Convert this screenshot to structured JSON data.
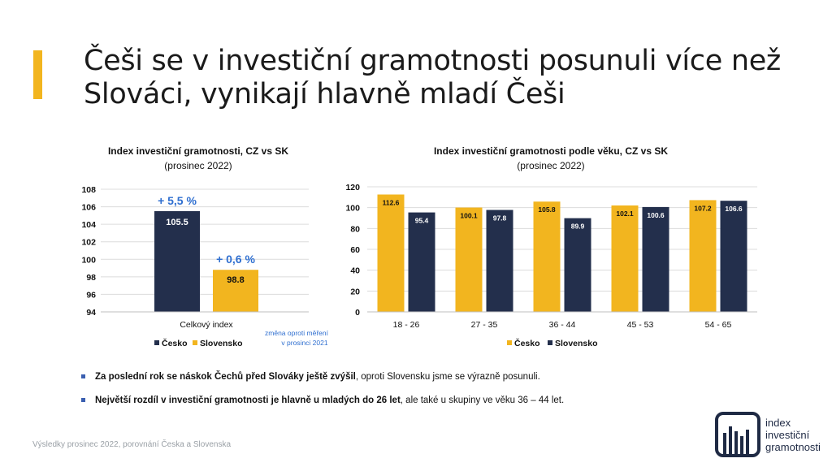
{
  "title": {
    "line1": "Češi se v investiční gramotnosti posunuli více než",
    "line2": "Slováci, vynikají hlavně mladí Češi"
  },
  "colors": {
    "accent": "#f2b51f",
    "cesko": "#f2b51f",
    "slovensko": "#232f4c",
    "highlight": "#2f6fd0"
  },
  "chart_data": [
    {
      "type": "bar",
      "title": "Index investiční gramotnosti, CZ vs SK",
      "subtitle": "(prosinec 2022)",
      "categories": [
        "Celkový index"
      ],
      "series": [
        {
          "name": "Česko",
          "values": [
            105.5
          ],
          "color": "#232f4c"
        },
        {
          "name": "Slovensko",
          "values": [
            98.8
          ],
          "color": "#f2b51f"
        }
      ],
      "ylim": [
        94,
        108
      ],
      "yticks": [
        94,
        96,
        98,
        100,
        102,
        104,
        106,
        108
      ],
      "annotations": [
        "+ 5,5 %",
        "+ 0,6 %"
      ],
      "note": "změna oproti měření v prosinci 2021",
      "legend": "bottom",
      "grid": true
    },
    {
      "type": "bar",
      "title": "Index investiční gramotnosti podle věku, CZ vs SK",
      "subtitle": "(prosinec 2022)",
      "categories": [
        "18 - 26",
        "27 - 35",
        "36 - 44",
        "45 - 53",
        "54 - 65"
      ],
      "series": [
        {
          "name": "Česko",
          "values": [
            112.6,
            100.1,
            105.8,
            102.1,
            107.2
          ],
          "color": "#f2b51f"
        },
        {
          "name": "Slovensko",
          "values": [
            95.4,
            97.8,
            89.9,
            100.6,
            106.6
          ],
          "color": "#232f4c"
        }
      ],
      "ylim": [
        0,
        120
      ],
      "yticks": [
        0,
        20,
        40,
        60,
        80,
        100,
        120
      ],
      "legend": "bottom",
      "grid": true
    }
  ],
  "bullets": [
    {
      "bold": "Za poslední rok se náskok Čechů před Slováky ještě zvýšil",
      "rest": ", oproti Slovensku jsme se výrazně posunuli."
    },
    {
      "bold": "Největší rozdíl v investiční gramotnosti je hlavně u mladých do 26 let",
      "rest": ", ale také u skupiny ve věku 36 – 44 let."
    }
  ],
  "footer": "Výsledky prosinec 2022, porovnání Česka a Slovenska",
  "logo": {
    "line1": "index",
    "line2": "investiční",
    "line3": "gramotnosti"
  }
}
